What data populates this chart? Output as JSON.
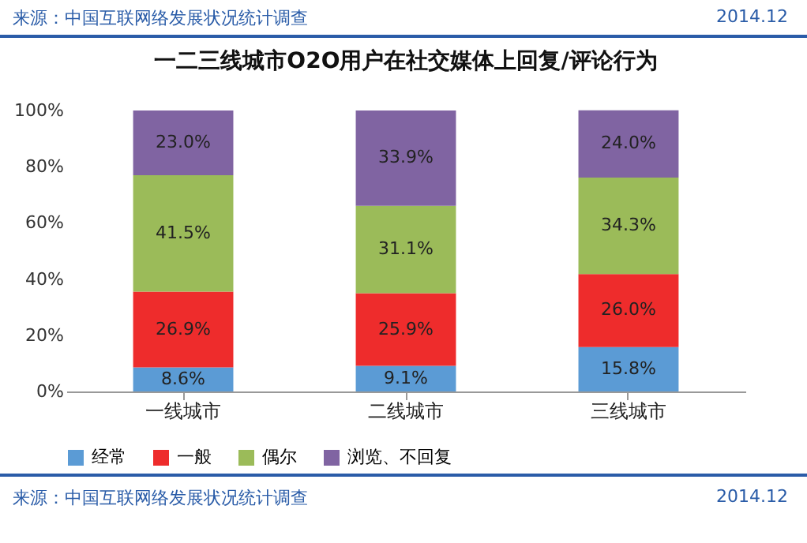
{
  "chart_data": {
    "type": "bar",
    "stacked": true,
    "title": "一二三线城市O2O用户在社交媒体上回复/评论行为",
    "annotations": [
      "来源：中国互联网络发展状况统计调查",
      "2014.12",
      "来源：中国互联网络发展状况统计调查",
      "2014.12"
    ],
    "categories": [
      "一线城市",
      "二线城市",
      "三线城市"
    ],
    "series": [
      {
        "name": "经常",
        "color": "#5b9bd5",
        "values": [
          8.6,
          9.1,
          15.8
        ],
        "value_labels": [
          "8.6%",
          "9.1%",
          "15.8%"
        ]
      },
      {
        "name": "一般",
        "color": "#ee2c2c",
        "values": [
          26.9,
          25.9,
          26.0
        ],
        "value_labels": [
          "26.9%",
          "25.9%",
          "26.0%"
        ]
      },
      {
        "name": "偶尔",
        "color": "#9bbb59",
        "values": [
          41.5,
          31.1,
          34.3
        ],
        "value_labels": [
          "41.5%",
          "31.1%",
          "34.3%"
        ]
      },
      {
        "name": "浏览、不回复",
        "color": "#8064a2",
        "values": [
          23.0,
          33.9,
          24.0
        ],
        "value_labels": [
          "23.0%",
          "33.9%",
          "24.0%"
        ]
      }
    ],
    "ylim": [
      0,
      100
    ],
    "yticks": [
      {
        "value": 0,
        "label": "0%"
      },
      {
        "value": 20,
        "label": "20%"
      },
      {
        "value": 40,
        "label": "40%"
      },
      {
        "value": 60,
        "label": "60%"
      },
      {
        "value": 80,
        "label": "80%"
      },
      {
        "value": 100,
        "label": "100%"
      }
    ],
    "legend": "bottom"
  }
}
